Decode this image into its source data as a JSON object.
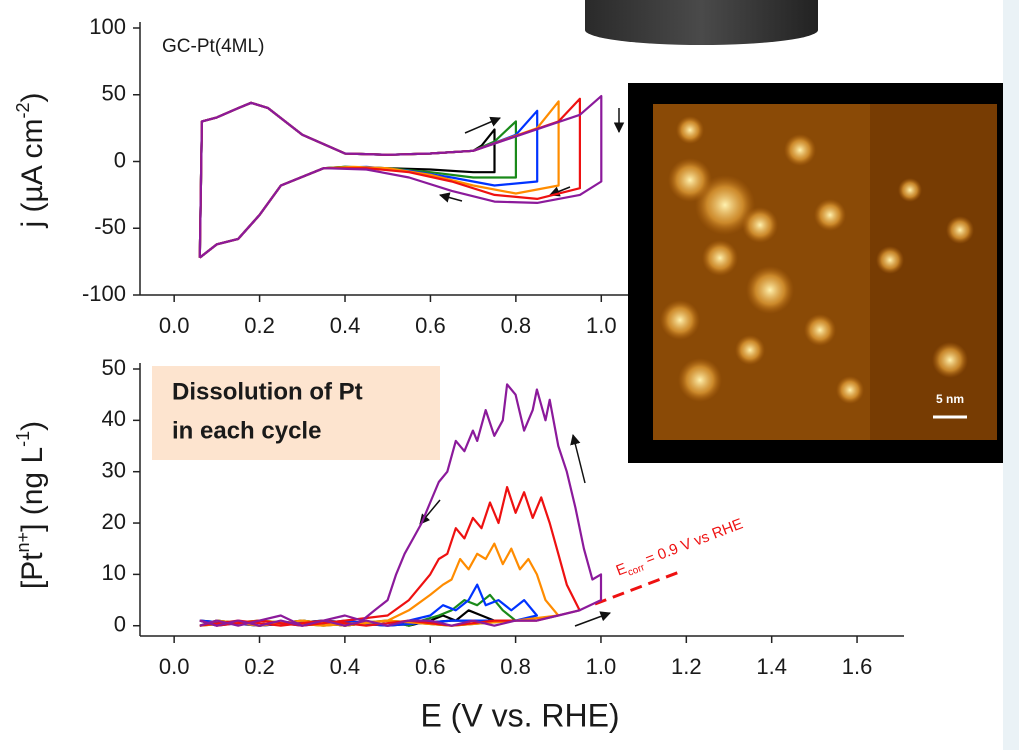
{
  "chart_data": [
    {
      "type": "line",
      "annotation": "GC-Pt(4ML)",
      "ylabel": [
        "j (µA cm",
        "-2",
        ")"
      ],
      "xlim": [
        -0.08,
        1.1
      ],
      "ylim": [
        -100,
        100
      ],
      "xticks": [
        {
          "value": 0,
          "label": "0.0"
        },
        {
          "value": 0.2,
          "label": "0.2"
        },
        {
          "value": 0.4,
          "label": "0.4"
        },
        {
          "value": 0.6,
          "label": "0.6"
        },
        {
          "value": 0.8,
          "label": "0.8"
        },
        {
          "value": 1,
          "label": "1.0"
        }
      ],
      "yticks": [
        100,
        50,
        0,
        -50,
        -100
      ],
      "series": [
        {
          "color": "#000000",
          "x": [
            0.06,
            0.065,
            0.1,
            0.15,
            0.18,
            0.22,
            0.3,
            0.4,
            0.5,
            0.6,
            0.7,
            0.72,
            0.75,
            0.75,
            0.7,
            0.6,
            0.5,
            0.4,
            0.35,
            0.25,
            0.2,
            0.15,
            0.1,
            0.06
          ],
          "values": [
            -72,
            30,
            33,
            40,
            44,
            40,
            20,
            6,
            5,
            6,
            8,
            12,
            24,
            -8,
            -8,
            -6,
            -5,
            -4,
            -5,
            -18,
            -40,
            -58,
            -62,
            -72
          ]
        },
        {
          "color": "#1a8a1a",
          "x": [
            0.06,
            0.065,
            0.1,
            0.15,
            0.18,
            0.22,
            0.3,
            0.4,
            0.5,
            0.6,
            0.7,
            0.75,
            0.8,
            0.8,
            0.7,
            0.6,
            0.5,
            0.4,
            0.35,
            0.25,
            0.2,
            0.15,
            0.1,
            0.06
          ],
          "values": [
            -72,
            30,
            33,
            40,
            44,
            40,
            20,
            6,
            5,
            6,
            8,
            15,
            30,
            -12,
            -12,
            -8,
            -5,
            -4,
            -5,
            -18,
            -40,
            -58,
            -62,
            -72
          ]
        },
        {
          "color": "#0033ff",
          "x": [
            0.06,
            0.065,
            0.1,
            0.15,
            0.18,
            0.22,
            0.3,
            0.4,
            0.5,
            0.6,
            0.7,
            0.8,
            0.85,
            0.85,
            0.75,
            0.65,
            0.55,
            0.45,
            0.35,
            0.25,
            0.2,
            0.15,
            0.1,
            0.06
          ],
          "values": [
            -72,
            30,
            33,
            40,
            44,
            40,
            20,
            6,
            5,
            6,
            8,
            20,
            38,
            -15,
            -18,
            -12,
            -7,
            -4,
            -5,
            -18,
            -40,
            -58,
            -62,
            -72
          ]
        },
        {
          "color": "#ff8c00",
          "x": [
            0.06,
            0.065,
            0.1,
            0.15,
            0.18,
            0.22,
            0.3,
            0.4,
            0.5,
            0.6,
            0.7,
            0.85,
            0.9,
            0.9,
            0.8,
            0.7,
            0.6,
            0.5,
            0.42,
            0.35,
            0.25,
            0.2,
            0.15,
            0.1,
            0.06
          ],
          "values": [
            -72,
            30,
            33,
            40,
            44,
            40,
            20,
            6,
            5,
            6,
            8,
            25,
            45,
            -18,
            -24,
            -18,
            -10,
            -5,
            -4,
            -5,
            -18,
            -40,
            -58,
            -62,
            -72
          ]
        },
        {
          "color": "#ee1111",
          "x": [
            0.06,
            0.065,
            0.1,
            0.15,
            0.18,
            0.22,
            0.3,
            0.4,
            0.5,
            0.6,
            0.7,
            0.9,
            0.95,
            0.95,
            0.85,
            0.75,
            0.65,
            0.55,
            0.45,
            0.35,
            0.25,
            0.2,
            0.15,
            0.1,
            0.06
          ],
          "values": [
            -72,
            30,
            33,
            40,
            44,
            40,
            20,
            6,
            5,
            6,
            8,
            30,
            47,
            -20,
            -28,
            -25,
            -15,
            -8,
            -5,
            -5,
            -18,
            -40,
            -58,
            -62,
            -72
          ]
        },
        {
          "color": "#8b1a9b",
          "x": [
            0.06,
            0.065,
            0.1,
            0.15,
            0.18,
            0.22,
            0.3,
            0.4,
            0.5,
            0.6,
            0.7,
            0.95,
            1.0,
            1.0,
            0.95,
            0.85,
            0.75,
            0.65,
            0.55,
            0.45,
            0.35,
            0.25,
            0.2,
            0.15,
            0.1,
            0.06
          ],
          "values": [
            -72,
            30,
            33,
            40,
            44,
            40,
            20,
            6,
            5,
            6,
            8,
            35,
            49,
            -15,
            -25,
            -31,
            -30,
            -22,
            -12,
            -6,
            -5,
            -18,
            -40,
            -58,
            -62,
            -72
          ]
        }
      ]
    },
    {
      "type": "line",
      "annotation": [
        "Dissolution of Pt",
        "in each cycle"
      ],
      "ecorr_label": [
        "E",
        "corr",
        " = 0.9 V vs RHE"
      ],
      "ylabel": [
        "[Pt",
        "n+",
        "] (ng L",
        "-1",
        ")"
      ],
      "xlabel": "E (V vs. RHE)",
      "xlim": [
        -0.08,
        1.71
      ],
      "ylim": [
        -2,
        50
      ],
      "xticks": [
        {
          "value": 0,
          "label": "0.0"
        },
        {
          "value": 0.2,
          "label": "0.2"
        },
        {
          "value": 0.4,
          "label": "0.4"
        },
        {
          "value": 0.6,
          "label": "0.6"
        },
        {
          "value": 0.8,
          "label": "0.8"
        },
        {
          "value": 1,
          "label": "1.0"
        },
        {
          "value": 1.2,
          "label": "1.2"
        },
        {
          "value": 1.4,
          "label": "1.4"
        },
        {
          "value": 1.6,
          "label": "1.6"
        }
      ],
      "yticks": [
        0,
        10,
        20,
        30,
        40,
        50
      ],
      "series": [
        {
          "color": "#000000",
          "x": [
            0.06,
            0.2,
            0.35,
            0.5,
            0.65,
            0.75,
            0.75,
            0.72,
            0.69,
            0.66,
            0.63,
            0.6,
            0.55,
            0.5,
            0.4,
            0.3,
            0.2,
            0.1,
            0.06
          ],
          "values": [
            1,
            0,
            1,
            0,
            1,
            1,
            1,
            2,
            3,
            1,
            2,
            1,
            0,
            1,
            0,
            1,
            0,
            1,
            0
          ]
        },
        {
          "color": "#1a8a1a",
          "x": [
            0.06,
            0.2,
            0.35,
            0.5,
            0.65,
            0.8,
            0.8,
            0.77,
            0.74,
            0.71,
            0.68,
            0.65,
            0.62,
            0.58,
            0.55,
            0.5,
            0.4,
            0.3,
            0.2,
            0.1,
            0.06
          ],
          "values": [
            0,
            1,
            0,
            1,
            0,
            1,
            1,
            3,
            6,
            4,
            5,
            3,
            2,
            1,
            0,
            1,
            0,
            1,
            0,
            1,
            0
          ]
        },
        {
          "color": "#0033ff",
          "x": [
            0.06,
            0.2,
            0.35,
            0.5,
            0.65,
            0.8,
            0.85,
            0.85,
            0.82,
            0.79,
            0.76,
            0.73,
            0.71,
            0.69,
            0.66,
            0.63,
            0.6,
            0.55,
            0.5,
            0.4,
            0.3,
            0.2,
            0.1,
            0.06
          ],
          "values": [
            1,
            0,
            1,
            0,
            1,
            1,
            2,
            2,
            5,
            3,
            5,
            4,
            8,
            5,
            3,
            4,
            2,
            1,
            0,
            1,
            0,
            1,
            0,
            1
          ]
        },
        {
          "color": "#ff8c00",
          "x": [
            0.06,
            0.2,
            0.35,
            0.5,
            0.65,
            0.8,
            0.9,
            0.9,
            0.87,
            0.85,
            0.83,
            0.81,
            0.79,
            0.77,
            0.75,
            0.73,
            0.71,
            0.69,
            0.67,
            0.65,
            0.63,
            0.6,
            0.55,
            0.5,
            0.4,
            0.3,
            0.2,
            0.1,
            0.06
          ],
          "values": [
            0,
            1,
            0,
            1,
            0,
            1,
            2,
            2,
            5,
            10,
            13,
            11,
            15,
            12,
            16,
            13,
            14,
            11,
            13,
            9,
            8,
            6,
            3,
            1,
            0,
            1,
            0,
            1,
            0
          ]
        },
        {
          "color": "#ee1111",
          "x": [
            0.06,
            0.15,
            0.25,
            0.35,
            0.45,
            0.55,
            0.65,
            0.75,
            0.85,
            0.95,
            0.95,
            0.92,
            0.9,
            0.88,
            0.86,
            0.84,
            0.82,
            0.8,
            0.78,
            0.76,
            0.74,
            0.72,
            0.7,
            0.68,
            0.66,
            0.64,
            0.62,
            0.6,
            0.58,
            0.55,
            0.5,
            0.4,
            0.3,
            0.2,
            0.1,
            0.06
          ],
          "values": [
            0,
            1,
            0,
            1,
            0,
            1,
            0,
            1,
            1,
            3,
            3,
            8,
            14,
            20,
            25,
            21,
            26,
            22,
            27,
            20,
            24,
            19,
            21,
            17,
            19,
            14,
            13,
            10,
            8,
            5,
            2,
            1,
            0,
            1,
            0,
            1
          ]
        },
        {
          "color": "#8b1a9b",
          "x": [
            0.06,
            0.1,
            0.15,
            0.2,
            0.25,
            0.3,
            0.35,
            0.4,
            0.45,
            0.5,
            0.55,
            0.6,
            0.65,
            0.7,
            0.75,
            0.8,
            0.85,
            0.9,
            0.95,
            1.0,
            1.0,
            0.98,
            0.96,
            0.94,
            0.92,
            0.9,
            0.88,
            0.87,
            0.85,
            0.84,
            0.82,
            0.8,
            0.78,
            0.77,
            0.75,
            0.73,
            0.71,
            0.7,
            0.68,
            0.66,
            0.64,
            0.62,
            0.6,
            0.58,
            0.56,
            0.54,
            0.52,
            0.5,
            0.47,
            0.44,
            0.4,
            0.35,
            0.3,
            0.25,
            0.2,
            0.15,
            0.1,
            0.06
          ],
          "values": [
            1,
            0,
            1,
            0,
            1,
            0,
            1,
            0,
            1,
            0,
            1,
            1,
            0,
            1,
            0,
            1,
            1,
            2,
            3,
            5,
            10,
            9,
            15,
            23,
            30,
            35,
            44,
            40,
            46,
            42,
            38,
            45,
            47,
            40,
            37,
            42,
            36,
            38,
            34,
            36,
            30,
            28,
            24,
            20,
            17,
            14,
            10,
            5,
            3,
            1,
            2,
            1,
            0,
            2,
            1,
            0,
            1,
            0
          ]
        }
      ]
    }
  ],
  "image": {
    "scale_bar": "5 nm"
  }
}
